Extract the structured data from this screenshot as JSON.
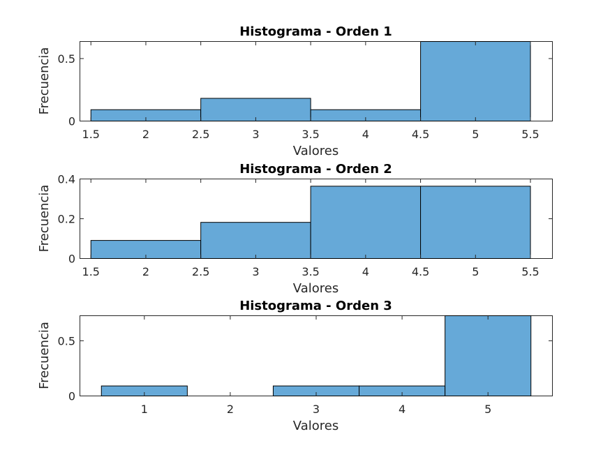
{
  "figure": {
    "bar_color": "#66A9D8",
    "edge_color": "#000000"
  },
  "chart_data": [
    {
      "type": "bar",
      "title": "Histograma - Orden 1",
      "xlabel": "Valores",
      "ylabel": "Frecuencia",
      "bin_edges": [
        1.5,
        2.5,
        3.5,
        4.5,
        5.5
      ],
      "values": [
        0.0909,
        0.1818,
        0.0909,
        0.6364
      ],
      "xlim": [
        1.4,
        5.7
      ],
      "ylim": [
        0,
        0.6364
      ],
      "xticks": [
        1.5,
        2,
        2.5,
        3,
        3.5,
        4,
        4.5,
        5,
        5.5
      ],
      "xtick_labels": [
        "1.5",
        "2",
        "2.5",
        "3",
        "3.5",
        "4",
        "4.5",
        "5",
        "5.5"
      ],
      "yticks": [
        0,
        0.5
      ],
      "ytick_labels": [
        "0",
        "0.5"
      ],
      "grid": false
    },
    {
      "type": "bar",
      "title": "Histograma - Orden 2",
      "xlabel": "Valores",
      "ylabel": "Frecuencia",
      "bin_edges": [
        1.5,
        2.5,
        3.5,
        4.5,
        5.5
      ],
      "values": [
        0.0909,
        0.1818,
        0.3636,
        0.3636
      ],
      "xlim": [
        1.4,
        5.7
      ],
      "ylim": [
        0,
        0.4
      ],
      "xticks": [
        1.5,
        2,
        2.5,
        3,
        3.5,
        4,
        4.5,
        5,
        5.5
      ],
      "xtick_labels": [
        "1.5",
        "2",
        "2.5",
        "3",
        "3.5",
        "4",
        "4.5",
        "5",
        "5.5"
      ],
      "yticks": [
        0,
        0.2,
        0.4
      ],
      "ytick_labels": [
        "0",
        "0.2",
        "0.4"
      ],
      "grid": false
    },
    {
      "type": "bar",
      "title": "Histograma - Orden 3",
      "xlabel": "Valores",
      "ylabel": "Frecuencia",
      "bin_edges": [
        0.5,
        1.5,
        2.5,
        3.5,
        4.5,
        5.5
      ],
      "values": [
        0.0909,
        0,
        0.0909,
        0.0909,
        0.7273
      ],
      "xlim": [
        0.25,
        5.75
      ],
      "ylim": [
        0,
        0.7273
      ],
      "xticks": [
        1,
        2,
        3,
        4,
        5
      ],
      "xtick_labels": [
        "1",
        "2",
        "3",
        "4",
        "5"
      ],
      "yticks": [
        0,
        0.5
      ],
      "ytick_labels": [
        "0",
        "0.5"
      ],
      "grid": false
    }
  ]
}
